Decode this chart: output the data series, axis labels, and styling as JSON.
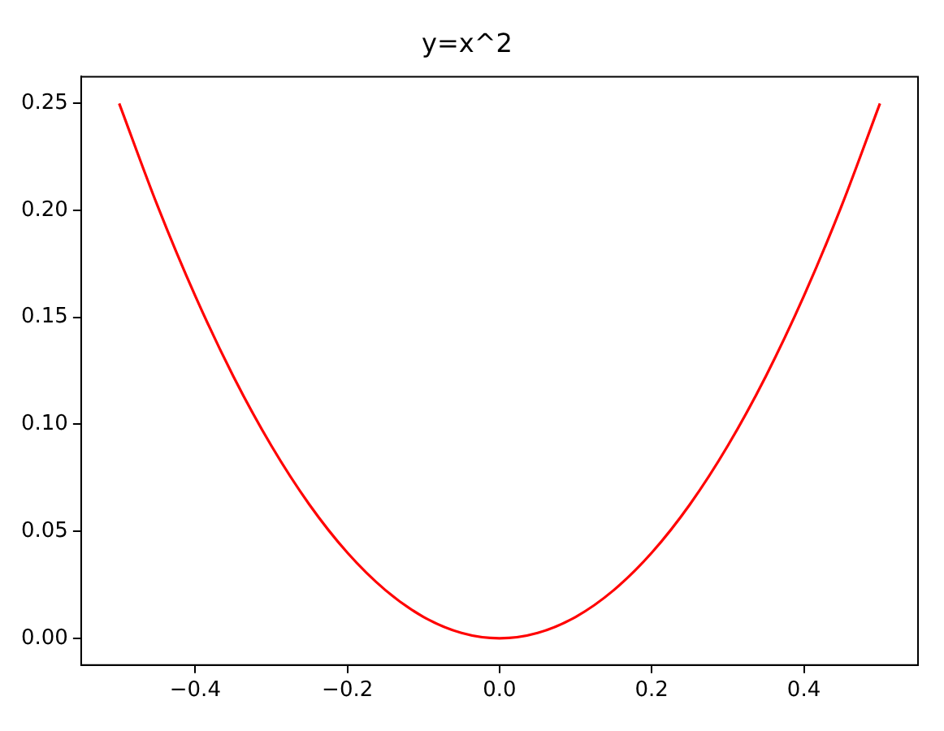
{
  "chart_data": {
    "type": "line",
    "title": "y=x^2",
    "x": [
      -0.5,
      -0.45,
      -0.4,
      -0.35,
      -0.3,
      -0.25,
      -0.2,
      -0.15,
      -0.1,
      -0.05,
      0,
      0.05,
      0.1,
      0.15,
      0.2,
      0.25,
      0.3,
      0.35,
      0.4,
      0.45,
      0.5
    ],
    "series": [
      {
        "color": "#ff0000",
        "values": [
          0.25,
          0.2025,
          0.16,
          0.1225,
          0.09,
          0.0625,
          0.04,
          0.0225,
          0.01,
          0.0025,
          0,
          0.0025,
          0.01,
          0.0225,
          0.04,
          0.0625,
          0.09,
          0.1225,
          0.16,
          0.2025,
          0.25
        ]
      }
    ],
    "xlim": [
      -0.55,
      0.55
    ],
    "xticks": [
      {
        "value": -0.4,
        "label": "−0.4"
      },
      {
        "value": -0.2,
        "label": "−0.2"
      },
      {
        "value": 0,
        "label": "0.0"
      },
      {
        "value": 0.2,
        "label": "0.2"
      },
      {
        "value": 0.4,
        "label": "0.4"
      }
    ],
    "ylim": [
      -0.0125,
      0.2625
    ],
    "yticks": [
      {
        "value": 0,
        "label": "0.00"
      },
      0.05,
      {
        "value": 0.1,
        "label": "0.10"
      },
      0.15,
      {
        "value": 0.2,
        "label": "0.20"
      },
      0.25
    ],
    "grid": false,
    "legend": false,
    "marker": "none",
    "line_style": "solid"
  }
}
